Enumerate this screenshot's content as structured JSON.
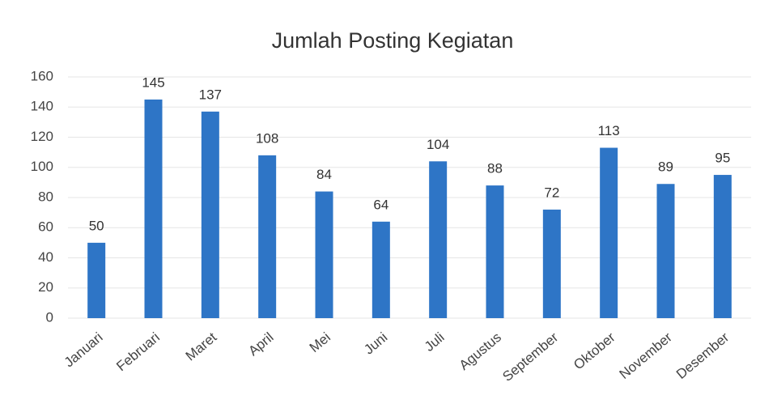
{
  "chart_data": {
    "type": "bar",
    "title": "Jumlah Posting Kegiatan",
    "categories": [
      "Januari",
      "Februari",
      "Maret",
      "April",
      "Mei",
      "Juni",
      "Juli",
      "Agustus",
      "September",
      "Oktober",
      "November",
      "Desember"
    ],
    "values": [
      50,
      145,
      137,
      108,
      84,
      64,
      104,
      88,
      72,
      113,
      89,
      95
    ],
    "color": "#2e75c6",
    "ylim": [
      0,
      160
    ],
    "yticks": [
      0,
      20,
      40,
      60,
      80,
      100,
      120,
      140,
      160
    ],
    "grid": true
  }
}
